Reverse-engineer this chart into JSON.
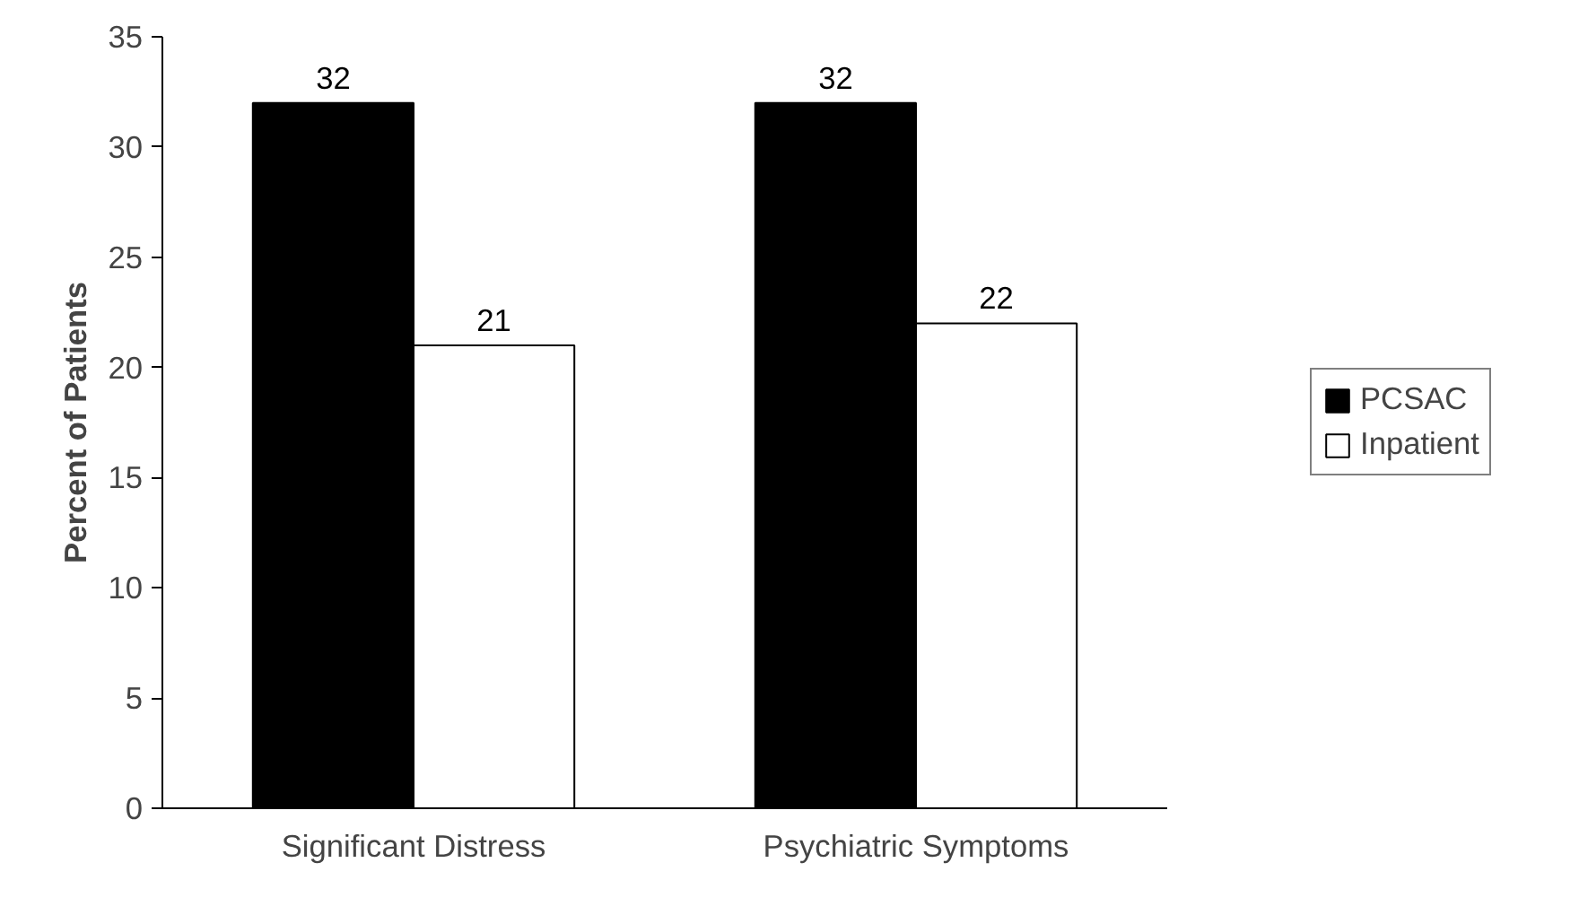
{
  "chart_data": {
    "type": "bar",
    "ylabel": "Percent of Patients",
    "categories": [
      "Significant Distress",
      "Psychiatric Symptoms"
    ],
    "series": [
      {
        "name": "PCSAC",
        "color": "#000000",
        "values": [
          32,
          32
        ]
      },
      {
        "name": "Inpatient",
        "color": "#ffffff",
        "values": [
          21,
          22
        ]
      }
    ],
    "ylim": [
      0,
      35
    ],
    "yticks": [
      0,
      5,
      10,
      15,
      20,
      25,
      30,
      35
    ],
    "grid": false,
    "legend": "right",
    "data_labels": true
  }
}
